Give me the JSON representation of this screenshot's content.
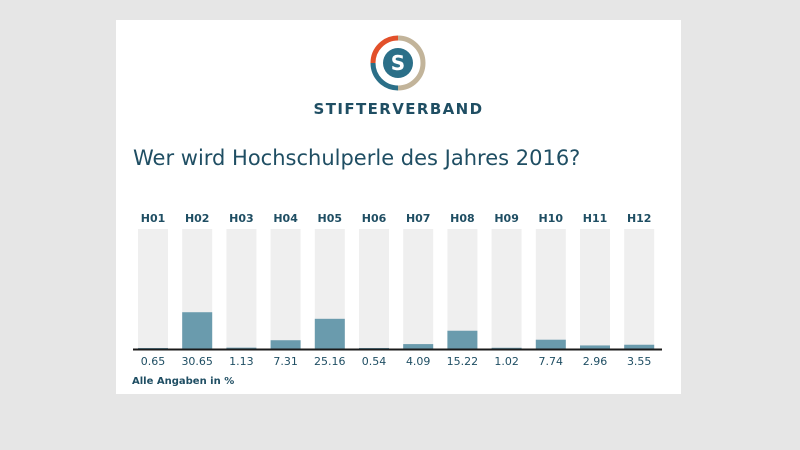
{
  "brand": {
    "name": "STIFTERVERBAND",
    "logo_letter": "S"
  },
  "colors": {
    "text": "#1f4e63",
    "bar": "#6a9bad",
    "track": "#efefef",
    "baseline": "#1a1a1a",
    "logo_red": "#e2502a",
    "logo_blue": "#2b6f88",
    "logo_tan": "#c2b49a"
  },
  "chart_data": {
    "type": "bar",
    "title": "Wer wird Hochschulperle des Jahres 2016?",
    "categories": [
      "H01",
      "H02",
      "H03",
      "H04",
      "H05",
      "H06",
      "H07",
      "H08",
      "H09",
      "H10",
      "H11",
      "H12"
    ],
    "values": [
      0.65,
      30.65,
      1.13,
      7.31,
      25.16,
      0.54,
      4.09,
      15.22,
      1.02,
      7.74,
      2.96,
      3.55
    ],
    "value_labels": [
      "0.65",
      "30.65",
      "1.13",
      "7.31",
      "25.16",
      "0.54",
      "4.09",
      "15.22",
      "1.02",
      "7.74",
      "2.96",
      "3.55"
    ],
    "ylim": [
      0,
      100
    ],
    "grid": false,
    "note": "Alle Angaben in %"
  }
}
